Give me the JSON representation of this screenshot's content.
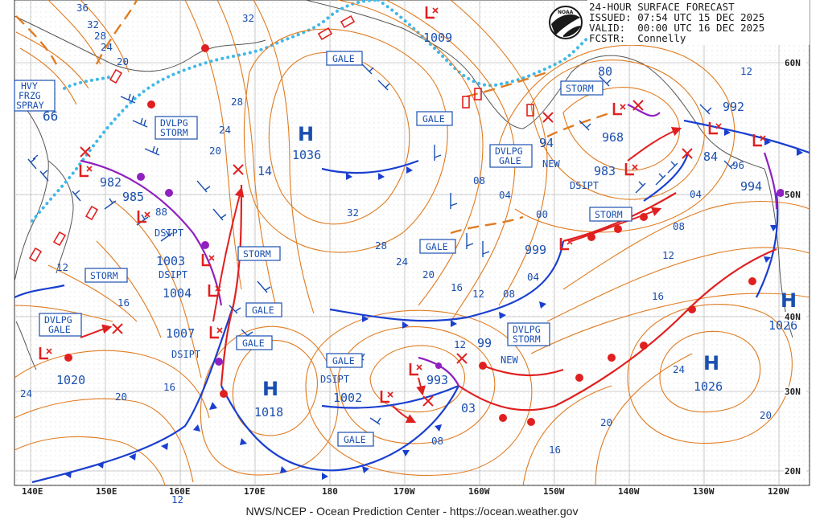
{
  "header": {
    "title": "24-HOUR SURFACE FORECAST",
    "issued": "ISSUED: 07:54 UTC 15 DEC 2025",
    "valid": "VALID:  00:00 UTC 16 DEC 2025",
    "forecaster": "FCSTR:  Connelly",
    "logo_text": "NOAA"
  },
  "footer": "NWS/NCEP - Ocean Prediction Center - https://ocean.weather.gov",
  "colors": {
    "isobar": "#e07b20",
    "front_cold": "#1a3fd0",
    "front_warm": "#e02020",
    "occluded": "#9020c0",
    "label": "#1a4fb0",
    "ice": "#40b8e8",
    "wind": "#1a4fb0",
    "grid": "#b8b8b8"
  },
  "lon_labels": [
    "140E",
    "150E",
    "160E",
    "170E",
    "180",
    "170W",
    "160W",
    "150W",
    "140W",
    "130W",
    "120W"
  ],
  "lat_labels": [
    "60N",
    "50N",
    "40N",
    "30N",
    "20N"
  ],
  "pressure_centers": [
    {
      "type": "H",
      "value": "1036"
    },
    {
      "type": "H",
      "value": "1018"
    },
    {
      "type": "H",
      "value": "1026"
    },
    {
      "type": "H",
      "value": "1026"
    },
    {
      "type": "L",
      "value": "982"
    },
    {
      "type": "L",
      "value": "985"
    },
    {
      "type": "L",
      "value": "1003"
    },
    {
      "type": "L",
      "value": "1004"
    },
    {
      "type": "L",
      "value": "1007"
    },
    {
      "type": "L",
      "value": "1020"
    },
    {
      "type": "L",
      "value": "993"
    },
    {
      "type": "L",
      "value": "1002"
    },
    {
      "type": "L",
      "value": "999"
    },
    {
      "type": "L",
      "value": "968"
    },
    {
      "type": "L",
      "value": "983"
    },
    {
      "type": "L",
      "value": "992"
    },
    {
      "type": "L",
      "value": "994"
    },
    {
      "type": "L",
      "value": "1009"
    }
  ],
  "labels": {
    "hvy_frzg_spray": [
      "HVY",
      "FRZG",
      "SPRAY"
    ],
    "dvlpg_storm": [
      "DVLPG",
      "STORM"
    ],
    "dvlpg_gale_w": [
      "DVLPG",
      "GALE"
    ],
    "dvlpg_gale_e": [
      "DVLPG",
      "GALE"
    ],
    "dvlpg_storm_s": [
      "DVLPG",
      "STORM"
    ],
    "storm": "STORM",
    "gale": "GALE",
    "dsipt": "DSIPT",
    "new": "NEW"
  },
  "isobar_labels": [
    "36",
    "32",
    "28",
    "24",
    "20",
    "12",
    "66",
    "88",
    "16",
    "24",
    "20",
    "16",
    "12",
    "32",
    "28",
    "24",
    "20",
    "16",
    "12",
    "08",
    "04",
    "00",
    "32",
    "28",
    "24",
    "20",
    "16",
    "12",
    "08",
    "04",
    "12",
    "80",
    "96",
    "84",
    "04",
    "08",
    "12",
    "16",
    "20",
    "24",
    "20",
    "16",
    "20",
    "08",
    "03",
    "99",
    "94",
    "14"
  ]
}
